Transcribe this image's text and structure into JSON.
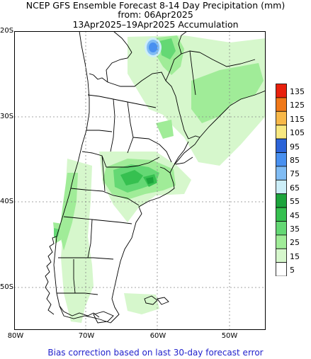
{
  "title": {
    "line1": "NCEP GFS Ensemble Forecast 8-14 Day Precipitation (mm)",
    "line2": "from: 06Apr2025",
    "line3": "13Apr2025–19Apr2025 Accumulation"
  },
  "axes": {
    "lat_labels": [
      "20S",
      "30S",
      "40S",
      "50S"
    ],
    "lon_labels": [
      "80W",
      "70W",
      "60W",
      "50W"
    ]
  },
  "legend": {
    "labels": [
      "135",
      "125",
      "115",
      "105",
      "95",
      "85",
      "75",
      "65",
      "55",
      "45",
      "35",
      "25",
      "15",
      "5"
    ],
    "colors": [
      "#e8200c",
      "#f07818",
      "#f8b848",
      "#f8e880",
      "#2c64d8",
      "#4890f0",
      "#80bcf4",
      "#cceef8",
      "#1ca43c",
      "#36c050",
      "#64d874",
      "#a0ec98",
      "#d6f7cc",
      "#ffffff"
    ]
  },
  "footer": "Bias correction based on last 30-day forecast error"
}
